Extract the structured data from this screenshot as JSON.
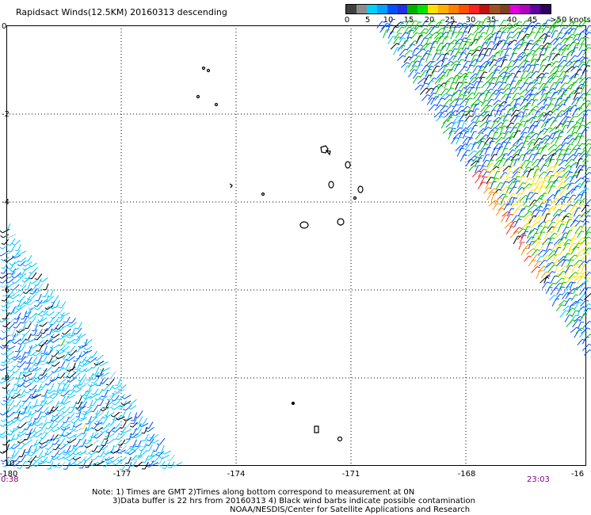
{
  "title": "Rapidsact Winds(12.5KM) 20160313 descending",
  "legend": {
    "labels": [
      "0",
      "5",
      "10",
      "15",
      "20",
      "25",
      "30",
      "35",
      "40",
      "45",
      ">50 knots"
    ],
    "colors": [
      "#404040",
      "#8c8c8c",
      "#00c8ff",
      "#0050ff",
      "#00c000",
      "#ffe000",
      "#ff9000",
      "#ff2020",
      "#a05020",
      "#e000e0",
      "#6000a0"
    ]
  },
  "y_axis_labels": [
    "0",
    "-2",
    "-4",
    "-6",
    "-8",
    "-10"
  ],
  "x_axis_labels": [
    "-180",
    "-177",
    "-174",
    "-171",
    "-168",
    "-16"
  ],
  "time_left": "0:38",
  "time_right": "23:03",
  "notes": [
    "Note: 1) Times are GMT 2)Times along bottom correspond to measurement at 0N",
    "3)Data buffer is 22 hrs from 20160313 4) Black wind barbs indicate possible contamination",
    "NOAA/NESDIS/Center for Satellite Applications and Research"
  ]
}
